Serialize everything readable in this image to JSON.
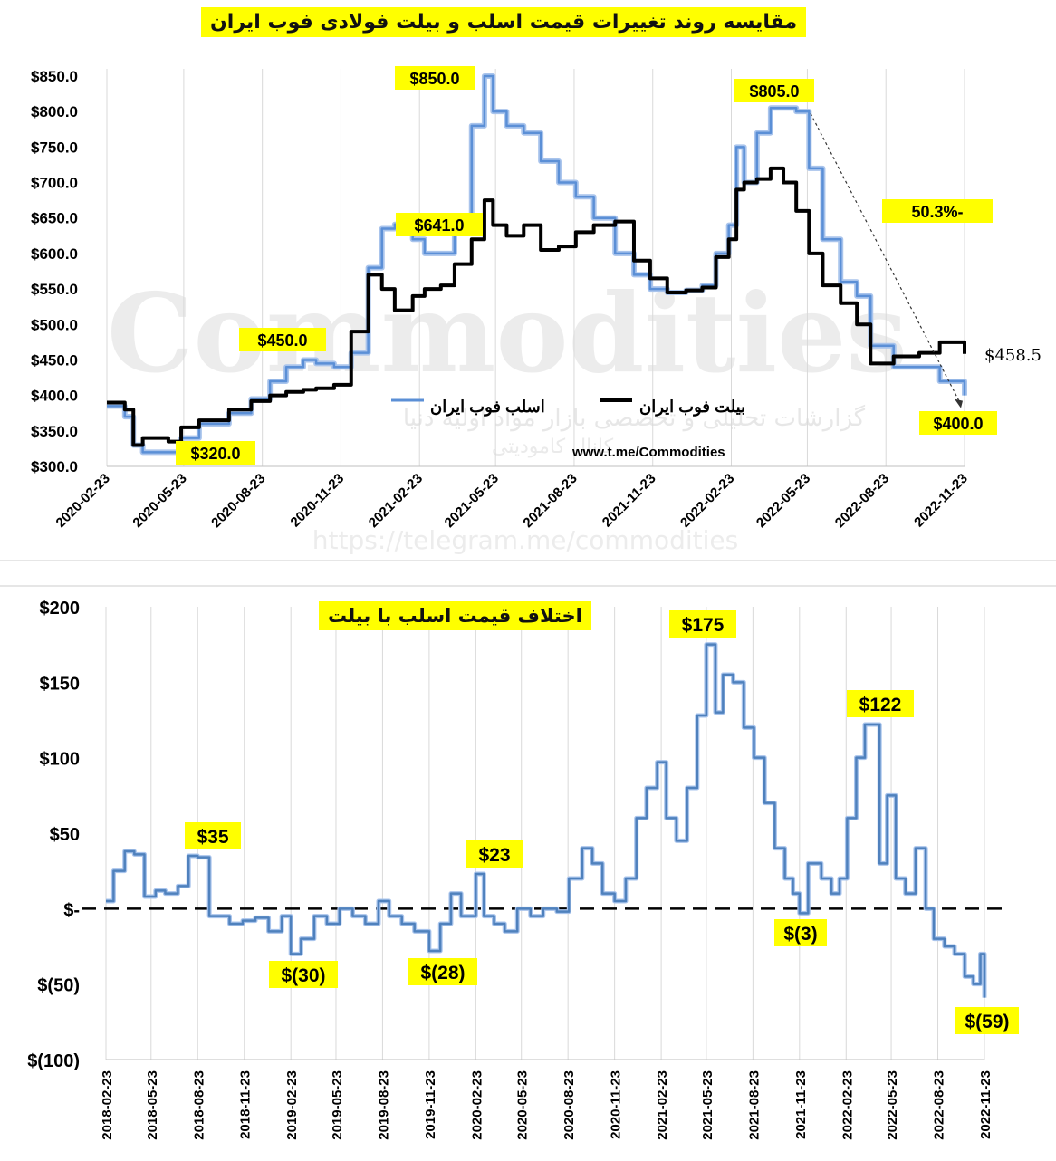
{
  "charts_meta": {
    "top_title": "مقایسه روند تغییرات قیمت اسلب و بیلت فولادی فوب ایران",
    "bottom_title": "اختلاف قیمت اسلب با بیلت",
    "change_label": "50.3%-",
    "channel_url": "www.t.me/Commodities",
    "watermark_word": "Commodities",
    "watermark_sub": "گزارشات تحلیلی و تخصصی بازار مواد اولیه دنیا",
    "watermark_sub2": "کانال کامودیتی",
    "watermark_link": "https://telegram.me/commodities",
    "colors": {
      "slab": "#5b8fd6",
      "billet": "#000000",
      "diff": "#4f81bd",
      "highlight": "#ffff00"
    }
  },
  "chart_data": [
    {
      "type": "line",
      "title": "مقایسه روند تغییرات قیمت اسلب و بیلت فولادی فوب ایران",
      "x_ticks": [
        "2020-02-23",
        "2020-05-23",
        "2020-08-23",
        "2020-11-23",
        "2021-02-23",
        "2021-05-23",
        "2021-08-23",
        "2021-11-23",
        "2022-02-23",
        "2022-05-23",
        "2022-08-23",
        "2022-11-23"
      ],
      "y_ticks": [
        "$850.0",
        "$800.0",
        "$750.0",
        "$700.0",
        "$650.0",
        "$600.0",
        "$550.0",
        "$500.0",
        "$450.0",
        "$400.0",
        "$350.0",
        "$300.0"
      ],
      "ylim": [
        300,
        850
      ],
      "legend": [
        "اسلب فوب ایران",
        "بیلت فوب ایران"
      ],
      "series": [
        {
          "name": "اسلب فوب ایران",
          "x": [
            "2020-02-23",
            "2020-03-15",
            "2020-03-25",
            "2020-04-05",
            "2020-05-05",
            "2020-05-20",
            "2020-06-10",
            "2020-07-15",
            "2020-08-10",
            "2020-09-01",
            "2020-09-20",
            "2020-10-10",
            "2020-10-25",
            "2020-11-15",
            "2020-12-05",
            "2020-12-25",
            "2021-01-10",
            "2021-01-25",
            "2021-02-15",
            "2021-03-01",
            "2021-03-20",
            "2021-04-05",
            "2021-04-25",
            "2021-05-10",
            "2021-05-20",
            "2021-06-05",
            "2021-06-25",
            "2021-07-15",
            "2021-08-05",
            "2021-08-25",
            "2021-09-15",
            "2021-10-10",
            "2021-11-01",
            "2021-11-20",
            "2021-12-10",
            "2022-01-01",
            "2022-01-20",
            "2022-02-05",
            "2022-02-20",
            "2022-03-01",
            "2022-03-10",
            "2022-03-25",
            "2022-04-10",
            "2022-04-25",
            "2022-05-10",
            "2022-05-25",
            "2022-06-10",
            "2022-07-01",
            "2022-07-20",
            "2022-08-05",
            "2022-09-01",
            "2022-10-01",
            "2022-10-25",
            "2022-11-23"
          ],
          "values": [
            385,
            370,
            330,
            320,
            320,
            340,
            360,
            375,
            395,
            420,
            440,
            450,
            445,
            440,
            460,
            580,
            635,
            641,
            620,
            600,
            600,
            630,
            780,
            850,
            800,
            780,
            770,
            730,
            700,
            680,
            650,
            600,
            570,
            550,
            545,
            548,
            555,
            600,
            640,
            750,
            700,
            770,
            805,
            805,
            800,
            720,
            620,
            560,
            540,
            470,
            440,
            440,
            420,
            400
          ]
        },
        {
          "name": "بیلت فوب ایران",
          "x": [
            "2020-02-23",
            "2020-03-15",
            "2020-03-25",
            "2020-04-05",
            "2020-05-05",
            "2020-05-20",
            "2020-06-10",
            "2020-07-15",
            "2020-08-10",
            "2020-09-01",
            "2020-09-20",
            "2020-10-10",
            "2020-10-25",
            "2020-11-15",
            "2020-12-05",
            "2020-12-25",
            "2021-01-10",
            "2021-01-25",
            "2021-02-15",
            "2021-03-01",
            "2021-03-20",
            "2021-04-05",
            "2021-04-25",
            "2021-05-10",
            "2021-05-20",
            "2021-06-05",
            "2021-06-25",
            "2021-07-15",
            "2021-08-05",
            "2021-08-25",
            "2021-09-15",
            "2021-10-10",
            "2021-11-01",
            "2021-11-20",
            "2021-12-10",
            "2022-01-01",
            "2022-01-20",
            "2022-02-05",
            "2022-02-20",
            "2022-03-01",
            "2022-03-10",
            "2022-03-25",
            "2022-04-10",
            "2022-04-25",
            "2022-05-10",
            "2022-05-25",
            "2022-06-10",
            "2022-07-01",
            "2022-07-20",
            "2022-08-05",
            "2022-09-01",
            "2022-10-01",
            "2022-10-25",
            "2022-11-23"
          ],
          "values": [
            390,
            380,
            330,
            340,
            335,
            355,
            365,
            380,
            392,
            400,
            405,
            408,
            410,
            415,
            490,
            570,
            550,
            520,
            540,
            550,
            555,
            585,
            620,
            675,
            640,
            625,
            640,
            605,
            610,
            630,
            640,
            645,
            590,
            565,
            545,
            548,
            552,
            595,
            620,
            690,
            700,
            705,
            720,
            700,
            660,
            600,
            555,
            530,
            500,
            445,
            455,
            460,
            475,
            458.5
          ]
        }
      ],
      "annotations": [
        "$850.0",
        "$805.0",
        "$641.0",
        "$450.0",
        "$320.0",
        "$400.0",
        "$458.5"
      ]
    },
    {
      "type": "line",
      "title": "اختلاف قیمت اسلب با بیلت",
      "x_ticks": [
        "2018-02-23",
        "2018-05-23",
        "2018-08-23",
        "2018-11-23",
        "2019-02-23",
        "2019-05-23",
        "2019-08-23",
        "2019-11-23",
        "2020-02-23",
        "2020-05-23",
        "2020-08-23",
        "2020-11-23",
        "2021-02-23",
        "2021-05-23",
        "2021-08-23",
        "2021-11-23",
        "2022-02-23",
        "2022-05-23",
        "2022-08-23",
        "2022-11-23"
      ],
      "y_ticks": [
        "$200",
        "$150",
        "$100",
        "$50",
        "$-",
        "$(50)",
        "$(100)"
      ],
      "ylim": [
        -100,
        200
      ],
      "series": [
        {
          "name": "اختلاف",
          "x": [
            "2018-02-23",
            "2018-03-10",
            "2018-04-01",
            "2018-04-20",
            "2018-05-10",
            "2018-06-01",
            "2018-06-20",
            "2018-07-15",
            "2018-08-05",
            "2018-08-23",
            "2018-09-15",
            "2018-10-01",
            "2018-10-25",
            "2018-11-20",
            "2018-12-15",
            "2019-01-10",
            "2019-02-05",
            "2019-02-23",
            "2019-03-15",
            "2019-04-10",
            "2019-05-05",
            "2019-05-30",
            "2019-06-25",
            "2019-07-20",
            "2019-08-15",
            "2019-09-05",
            "2019-09-30",
            "2019-10-25",
            "2019-11-23",
            "2019-12-15",
            "2020-01-05",
            "2020-01-25",
            "2020-02-23",
            "2020-03-10",
            "2020-03-30",
            "2020-04-20",
            "2020-05-15",
            "2020-06-10",
            "2020-07-05",
            "2020-08-01",
            "2020-08-25",
            "2020-09-20",
            "2020-10-10",
            "2020-10-30",
            "2020-11-23",
            "2020-12-15",
            "2021-01-05",
            "2021-01-25",
            "2021-02-15",
            "2021-03-05",
            "2021-03-25",
            "2021-04-15",
            "2021-05-05",
            "2021-05-23",
            "2021-06-10",
            "2021-06-25",
            "2021-07-15",
            "2021-08-05",
            "2021-08-25",
            "2021-09-15",
            "2021-10-05",
            "2021-10-25",
            "2021-11-10",
            "2021-11-23",
            "2021-12-10",
            "2022-01-05",
            "2022-01-25",
            "2022-02-10",
            "2022-02-25",
            "2022-03-15",
            "2022-04-01",
            "2022-04-15",
            "2022-04-30",
            "2022-05-15",
            "2022-06-01",
            "2022-06-20",
            "2022-07-10",
            "2022-07-30",
            "2022-08-15",
            "2022-09-05",
            "2022-09-25",
            "2022-10-15",
            "2022-11-01",
            "2022-11-15",
            "2022-11-23"
          ],
          "values": [
            5,
            25,
            38,
            36,
            8,
            12,
            10,
            15,
            35,
            34,
            -5,
            -5,
            -10,
            -8,
            -6,
            -15,
            -5,
            -30,
            -20,
            -5,
            -10,
            0,
            -5,
            -10,
            5,
            -5,
            -10,
            -15,
            -28,
            -10,
            10,
            -5,
            23,
            -5,
            -10,
            -15,
            0,
            -5,
            0,
            -2,
            20,
            40,
            30,
            10,
            5,
            20,
            60,
            80,
            97,
            60,
            45,
            80,
            128,
            175,
            130,
            155,
            150,
            120,
            100,
            70,
            40,
            20,
            10,
            -3,
            30,
            20,
            10,
            20,
            60,
            100,
            122,
            122,
            30,
            75,
            20,
            10,
            40,
            0,
            -20,
            -25,
            -30,
            -45,
            -50,
            -30,
            -59
          ]
        }
      ],
      "annotations": [
        "$175",
        "$122",
        "$35",
        "$23",
        "$(3)",
        "$(30)",
        "$(28)",
        "$(59)"
      ]
    }
  ]
}
